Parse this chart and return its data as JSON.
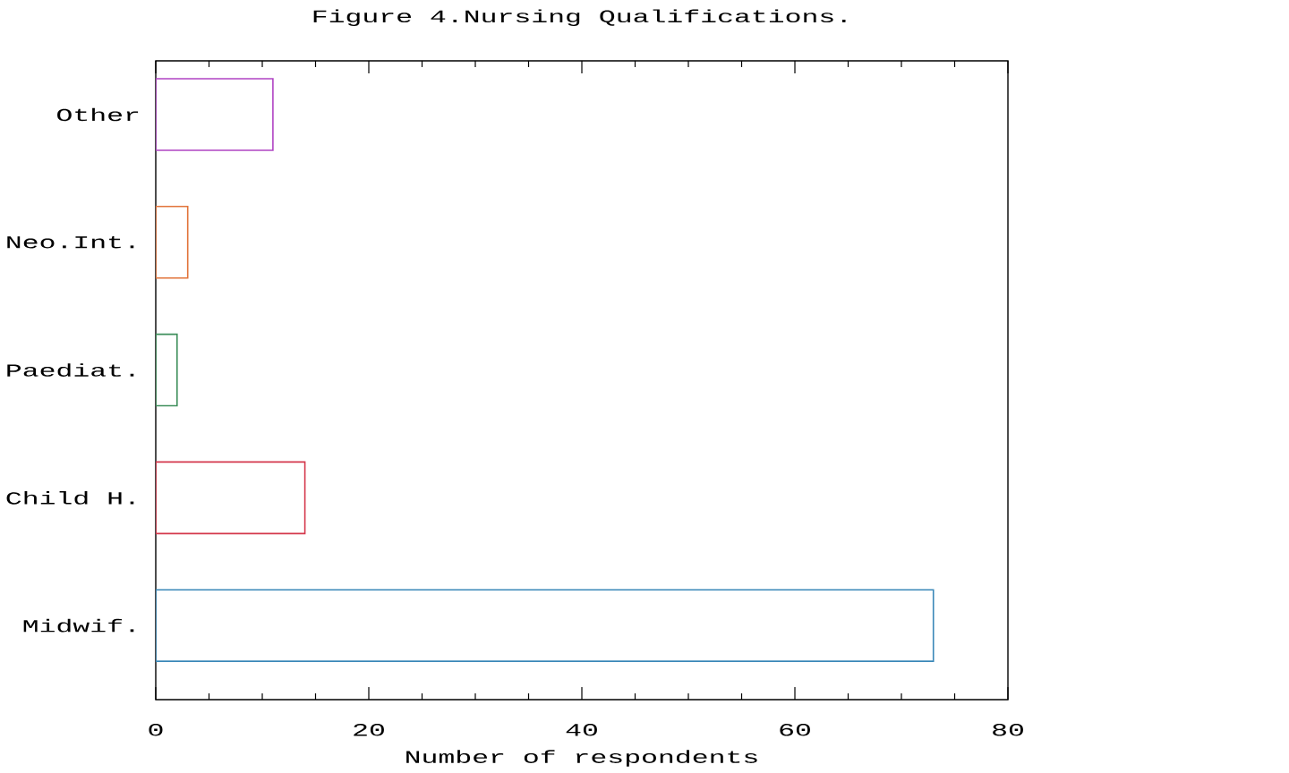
{
  "chart_data": {
    "type": "bar",
    "orientation": "horizontal",
    "title": "Figure 4.Nursing Qualifications.",
    "xlabel": "Number of respondents",
    "categories": [
      "Other",
      "Neo.Int.",
      "Paediat.",
      "Child H.",
      "Midwif."
    ],
    "values": [
      11,
      3,
      2,
      14,
      73
    ],
    "colors": [
      "#b044c4",
      "#e2743a",
      "#3f8f5c",
      "#d4384c",
      "#3a88b8"
    ],
    "xlim": [
      0,
      80
    ],
    "xticks": [
      0,
      20,
      40,
      60,
      80
    ]
  }
}
